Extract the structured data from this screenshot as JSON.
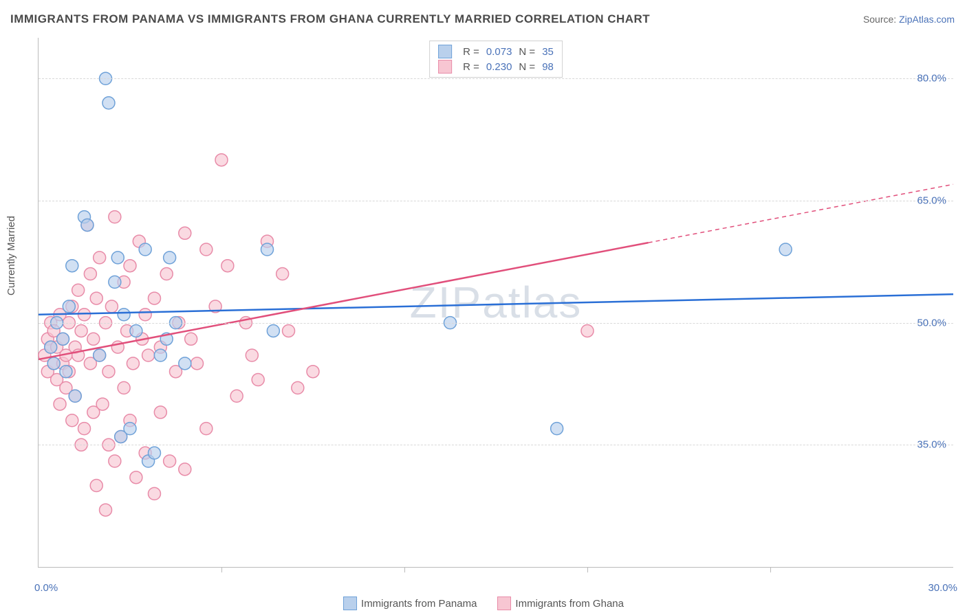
{
  "title": "IMMIGRANTS FROM PANAMA VS IMMIGRANTS FROM GHANA CURRENTLY MARRIED CORRELATION CHART",
  "source_prefix": "Source: ",
  "source_link": "ZipAtlas.com",
  "ylabel": "Currently Married",
  "watermark": "ZIPatlas",
  "chart": {
    "type": "scatter",
    "xlim": [
      0,
      30
    ],
    "ylim": [
      20,
      85
    ],
    "ytick_values": [
      35,
      50,
      65,
      80
    ],
    "ytick_labels": [
      "35.0%",
      "50.0%",
      "65.0%",
      "80.0%"
    ],
    "xtick_values": [
      0,
      30
    ],
    "xtick_labels": [
      "0.0%",
      "30.0%"
    ],
    "xtick_minor": [
      6,
      12,
      18,
      24
    ],
    "grid_color": "#d8d8d8",
    "axis_color": "#bbbbbb",
    "label_color": "#4a72b8",
    "background": "#ffffff",
    "marker_radius": 9,
    "marker_stroke_width": 1.5,
    "regression_line_width": 2.5
  },
  "series": [
    {
      "name": "Immigrants from Panama",
      "fill": "#b9d0ec",
      "stroke": "#6ea1d8",
      "line_color": "#2a6fd6",
      "r_label": "R =",
      "r_value": "0.073",
      "n_label": "N =",
      "n_value": "35",
      "regression": {
        "x1": 0,
        "y1": 51.0,
        "x2": 30,
        "y2": 53.5,
        "dash_from_x": null
      },
      "points": [
        [
          0.4,
          47
        ],
        [
          0.5,
          45
        ],
        [
          0.6,
          50
        ],
        [
          0.8,
          48
        ],
        [
          0.9,
          44
        ],
        [
          1.0,
          52
        ],
        [
          1.1,
          57
        ],
        [
          1.2,
          41
        ],
        [
          1.5,
          63
        ],
        [
          1.6,
          62
        ],
        [
          2.0,
          46
        ],
        [
          2.2,
          80
        ],
        [
          2.3,
          77
        ],
        [
          2.5,
          55
        ],
        [
          2.6,
          58
        ],
        [
          2.7,
          36
        ],
        [
          2.8,
          51
        ],
        [
          3.0,
          37
        ],
        [
          3.2,
          49
        ],
        [
          3.5,
          59
        ],
        [
          3.6,
          33
        ],
        [
          3.8,
          34
        ],
        [
          4.0,
          46
        ],
        [
          4.2,
          48
        ],
        [
          4.3,
          58
        ],
        [
          4.5,
          50
        ],
        [
          4.8,
          45
        ],
        [
          7.5,
          59
        ],
        [
          7.7,
          49
        ],
        [
          13.5,
          50
        ],
        [
          17.0,
          37
        ],
        [
          24.5,
          59
        ]
      ]
    },
    {
      "name": "Immigrants from Ghana",
      "fill": "#f7c6d2",
      "stroke": "#e88ba8",
      "line_color": "#e14f7b",
      "r_label": "R =",
      "r_value": "0.230",
      "n_label": "N =",
      "n_value": "98",
      "regression": {
        "x1": 0,
        "y1": 45.5,
        "x2": 30,
        "y2": 67.0,
        "dash_from_x": 20
      },
      "points": [
        [
          0.2,
          46
        ],
        [
          0.3,
          48
        ],
        [
          0.3,
          44
        ],
        [
          0.4,
          47
        ],
        [
          0.4,
          50
        ],
        [
          0.5,
          45
        ],
        [
          0.5,
          49
        ],
        [
          0.6,
          43
        ],
        [
          0.6,
          47
        ],
        [
          0.7,
          51
        ],
        [
          0.7,
          40
        ],
        [
          0.8,
          48
        ],
        [
          0.8,
          45
        ],
        [
          0.9,
          46
        ],
        [
          0.9,
          42
        ],
        [
          1.0,
          44
        ],
        [
          1.0,
          50
        ],
        [
          1.1,
          38
        ],
        [
          1.1,
          52
        ],
        [
          1.2,
          47
        ],
        [
          1.2,
          41
        ],
        [
          1.3,
          54
        ],
        [
          1.3,
          46
        ],
        [
          1.4,
          35
        ],
        [
          1.4,
          49
        ],
        [
          1.5,
          37
        ],
        [
          1.5,
          51
        ],
        [
          1.6,
          62
        ],
        [
          1.7,
          45
        ],
        [
          1.7,
          56
        ],
        [
          1.8,
          48
        ],
        [
          1.8,
          39
        ],
        [
          1.9,
          53
        ],
        [
          1.9,
          30
        ],
        [
          2.0,
          46
        ],
        [
          2.0,
          58
        ],
        [
          2.1,
          40
        ],
        [
          2.2,
          27
        ],
        [
          2.2,
          50
        ],
        [
          2.3,
          35
        ],
        [
          2.3,
          44
        ],
        [
          2.4,
          52
        ],
        [
          2.5,
          63
        ],
        [
          2.5,
          33
        ],
        [
          2.6,
          47
        ],
        [
          2.7,
          36
        ],
        [
          2.8,
          55
        ],
        [
          2.8,
          42
        ],
        [
          2.9,
          49
        ],
        [
          3.0,
          38
        ],
        [
          3.0,
          57
        ],
        [
          3.1,
          45
        ],
        [
          3.2,
          31
        ],
        [
          3.3,
          60
        ],
        [
          3.4,
          48
        ],
        [
          3.5,
          34
        ],
        [
          3.5,
          51
        ],
        [
          3.6,
          46
        ],
        [
          3.8,
          29
        ],
        [
          3.8,
          53
        ],
        [
          4.0,
          39
        ],
        [
          4.0,
          47
        ],
        [
          4.2,
          56
        ],
        [
          4.3,
          33
        ],
        [
          4.5,
          44
        ],
        [
          4.6,
          50
        ],
        [
          4.8,
          61
        ],
        [
          4.8,
          32
        ],
        [
          5.0,
          48
        ],
        [
          5.2,
          45
        ],
        [
          5.5,
          59
        ],
        [
          5.5,
          37
        ],
        [
          5.8,
          52
        ],
        [
          6.0,
          70
        ],
        [
          6.2,
          57
        ],
        [
          6.5,
          41
        ],
        [
          6.8,
          50
        ],
        [
          7.0,
          46
        ],
        [
          7.2,
          43
        ],
        [
          7.5,
          60
        ],
        [
          8.0,
          56
        ],
        [
          8.2,
          49
        ],
        [
          8.5,
          42
        ],
        [
          9.0,
          44
        ],
        [
          18.0,
          49
        ]
      ]
    }
  ]
}
